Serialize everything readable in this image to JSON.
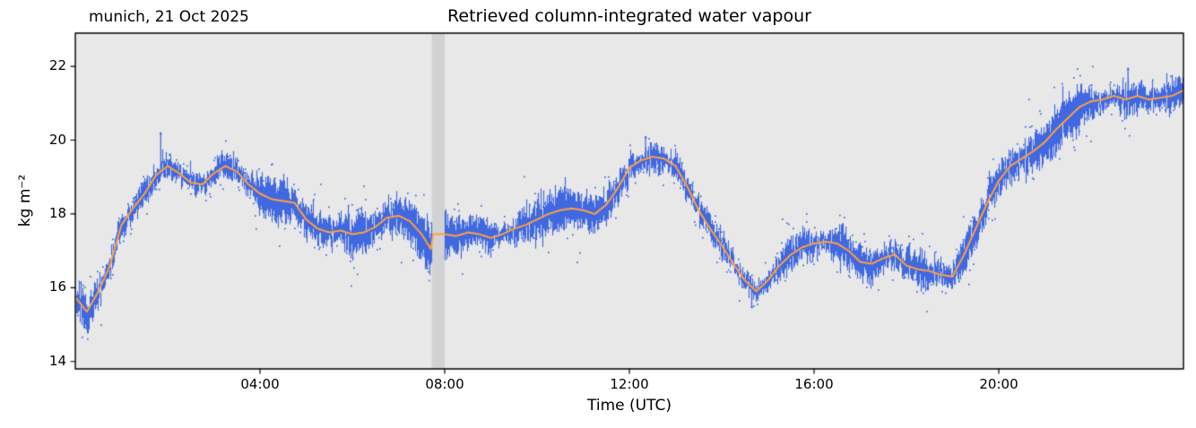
{
  "chart_data": {
    "type": "line",
    "title": "Retrieved column-integrated water vapour",
    "subtitle": "munich, 21 Oct 2025",
    "xlabel": "Time (UTC)",
    "ylabel": "kg m⁻²",
    "xlim": [
      0,
      24
    ],
    "ylim": [
      13.8,
      22.9
    ],
    "grid": false,
    "legend": null,
    "x_ticks": [
      {
        "value": 4,
        "label": "04:00"
      },
      {
        "value": 8,
        "label": "08:00"
      },
      {
        "value": 12,
        "label": "12:00"
      },
      {
        "value": 16,
        "label": "16:00"
      },
      {
        "value": 20,
        "label": "20:00"
      }
    ],
    "y_ticks": [
      {
        "value": 14,
        "label": "14"
      },
      {
        "value": 16,
        "label": "16"
      },
      {
        "value": 18,
        "label": "18"
      },
      {
        "value": 20,
        "label": "20"
      },
      {
        "value": 22,
        "label": "22"
      }
    ],
    "colors": {
      "raw": "#4169e1",
      "smoothed": "#ffa040",
      "plot_bg": "#e8e8e8",
      "figure_bg": "#ffffff",
      "axis": "#000000",
      "gap_band": "#d2d2d2"
    },
    "data_gap": {
      "start_hour": 7.72,
      "end_hour": 8.0,
      "smoothed_bridge_value": 17.45
    },
    "series": [
      {
        "name": "raw",
        "type": "noisy_scatter",
        "color": "#4169e1",
        "description": "high-rate retrievals forming a fuzzy band around the smoothed line",
        "noise_halfwidth_typical": 0.3
      },
      {
        "name": "smoothed",
        "type": "line",
        "color": "#ffa040",
        "x_start_hour": 0,
        "x_step_hour": 0.25,
        "values": [
          15.75,
          15.35,
          15.9,
          16.6,
          17.7,
          18.15,
          18.55,
          19.05,
          19.3,
          19.1,
          18.85,
          18.8,
          19.1,
          19.3,
          19.15,
          18.8,
          18.55,
          18.4,
          18.35,
          18.3,
          17.85,
          17.6,
          17.5,
          17.55,
          17.45,
          17.5,
          17.65,
          17.9,
          17.95,
          17.8,
          17.45,
          16.95,
          17.45,
          17.4,
          17.5,
          17.45,
          17.35,
          17.45,
          17.6,
          17.7,
          17.85,
          18.0,
          18.1,
          18.15,
          18.1,
          18.0,
          18.25,
          18.7,
          19.25,
          19.45,
          19.55,
          19.5,
          19.3,
          18.75,
          18.1,
          17.6,
          17.15,
          16.65,
          16.2,
          15.9,
          16.2,
          16.6,
          16.9,
          17.1,
          17.2,
          17.25,
          17.2,
          17.0,
          16.7,
          16.65,
          16.8,
          16.9,
          16.6,
          16.5,
          16.45,
          16.35,
          16.3,
          16.9,
          17.6,
          18.3,
          18.9,
          19.3,
          19.5,
          19.7,
          19.95,
          20.3,
          20.6,
          20.9,
          21.05,
          21.1,
          21.2,
          21.1,
          21.2,
          21.1,
          21.15,
          21.2,
          21.35
        ]
      }
    ],
    "noise_spikes": [
      {
        "hour": 0.2,
        "value": 14.95
      },
      {
        "hour": 1.85,
        "value": 20.2
      },
      {
        "hour": 7.62,
        "value": 16.55
      },
      {
        "hour": 12.35,
        "value": 20.1
      },
      {
        "hour": 14.65,
        "value": 15.5
      },
      {
        "hour": 22.8,
        "value": 21.95
      }
    ]
  }
}
